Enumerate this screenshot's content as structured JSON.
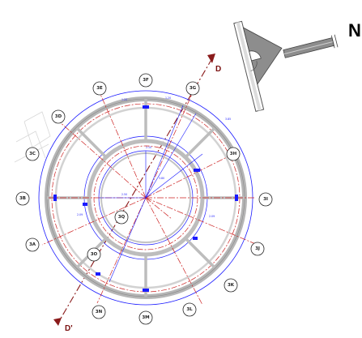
{
  "north_arrow": {
    "label": "N"
  },
  "section_marks": {
    "top_label": "D",
    "bottom_label": "D'"
  },
  "grid_bubbles": [
    "3E",
    "3F",
    "3G",
    "3D",
    "3H",
    "3C",
    "3I",
    "3B",
    "3A",
    "3J",
    "3K",
    "3L",
    "3M",
    "3N",
    "3O",
    "3Q"
  ],
  "colors": {
    "wall": "#9e9e9e",
    "wall_light": "#cfcfcf",
    "dimension": "#1a1aff",
    "grid": "#cc2020",
    "section": "#8a1b1b"
  }
}
